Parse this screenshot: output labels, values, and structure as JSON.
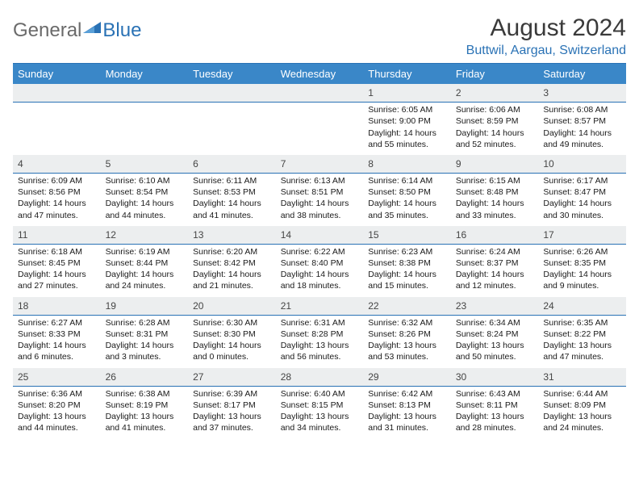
{
  "logo": {
    "text1": "General",
    "text2": "Blue",
    "color_gray": "#6a6a6a",
    "color_blue": "#2a72b5"
  },
  "title": "August 2024",
  "location": "Buttwil, Aargau, Switzerland",
  "colors": {
    "header_bg": "#3a87c8",
    "header_text": "#ffffff",
    "daynum_bg": "#eceeef",
    "daynum_border": "#2a72b5",
    "body_text": "#1a1a1a",
    "rule": "#2a72b5"
  },
  "weekdays": [
    "Sunday",
    "Monday",
    "Tuesday",
    "Wednesday",
    "Thursday",
    "Friday",
    "Saturday"
  ],
  "weeks": [
    [
      null,
      null,
      null,
      null,
      {
        "n": "1",
        "sr": "6:05 AM",
        "ss": "9:00 PM",
        "dl": "14 hours and 55 minutes."
      },
      {
        "n": "2",
        "sr": "6:06 AM",
        "ss": "8:59 PM",
        "dl": "14 hours and 52 minutes."
      },
      {
        "n": "3",
        "sr": "6:08 AM",
        "ss": "8:57 PM",
        "dl": "14 hours and 49 minutes."
      }
    ],
    [
      {
        "n": "4",
        "sr": "6:09 AM",
        "ss": "8:56 PM",
        "dl": "14 hours and 47 minutes."
      },
      {
        "n": "5",
        "sr": "6:10 AM",
        "ss": "8:54 PM",
        "dl": "14 hours and 44 minutes."
      },
      {
        "n": "6",
        "sr": "6:11 AM",
        "ss": "8:53 PM",
        "dl": "14 hours and 41 minutes."
      },
      {
        "n": "7",
        "sr": "6:13 AM",
        "ss": "8:51 PM",
        "dl": "14 hours and 38 minutes."
      },
      {
        "n": "8",
        "sr": "6:14 AM",
        "ss": "8:50 PM",
        "dl": "14 hours and 35 minutes."
      },
      {
        "n": "9",
        "sr": "6:15 AM",
        "ss": "8:48 PM",
        "dl": "14 hours and 33 minutes."
      },
      {
        "n": "10",
        "sr": "6:17 AM",
        "ss": "8:47 PM",
        "dl": "14 hours and 30 minutes."
      }
    ],
    [
      {
        "n": "11",
        "sr": "6:18 AM",
        "ss": "8:45 PM",
        "dl": "14 hours and 27 minutes."
      },
      {
        "n": "12",
        "sr": "6:19 AM",
        "ss": "8:44 PM",
        "dl": "14 hours and 24 minutes."
      },
      {
        "n": "13",
        "sr": "6:20 AM",
        "ss": "8:42 PM",
        "dl": "14 hours and 21 minutes."
      },
      {
        "n": "14",
        "sr": "6:22 AM",
        "ss": "8:40 PM",
        "dl": "14 hours and 18 minutes."
      },
      {
        "n": "15",
        "sr": "6:23 AM",
        "ss": "8:38 PM",
        "dl": "14 hours and 15 minutes."
      },
      {
        "n": "16",
        "sr": "6:24 AM",
        "ss": "8:37 PM",
        "dl": "14 hours and 12 minutes."
      },
      {
        "n": "17",
        "sr": "6:26 AM",
        "ss": "8:35 PM",
        "dl": "14 hours and 9 minutes."
      }
    ],
    [
      {
        "n": "18",
        "sr": "6:27 AM",
        "ss": "8:33 PM",
        "dl": "14 hours and 6 minutes."
      },
      {
        "n": "19",
        "sr": "6:28 AM",
        "ss": "8:31 PM",
        "dl": "14 hours and 3 minutes."
      },
      {
        "n": "20",
        "sr": "6:30 AM",
        "ss": "8:30 PM",
        "dl": "14 hours and 0 minutes."
      },
      {
        "n": "21",
        "sr": "6:31 AM",
        "ss": "8:28 PM",
        "dl": "13 hours and 56 minutes."
      },
      {
        "n": "22",
        "sr": "6:32 AM",
        "ss": "8:26 PM",
        "dl": "13 hours and 53 minutes."
      },
      {
        "n": "23",
        "sr": "6:34 AM",
        "ss": "8:24 PM",
        "dl": "13 hours and 50 minutes."
      },
      {
        "n": "24",
        "sr": "6:35 AM",
        "ss": "8:22 PM",
        "dl": "13 hours and 47 minutes."
      }
    ],
    [
      {
        "n": "25",
        "sr": "6:36 AM",
        "ss": "8:20 PM",
        "dl": "13 hours and 44 minutes."
      },
      {
        "n": "26",
        "sr": "6:38 AM",
        "ss": "8:19 PM",
        "dl": "13 hours and 41 minutes."
      },
      {
        "n": "27",
        "sr": "6:39 AM",
        "ss": "8:17 PM",
        "dl": "13 hours and 37 minutes."
      },
      {
        "n": "28",
        "sr": "6:40 AM",
        "ss": "8:15 PM",
        "dl": "13 hours and 34 minutes."
      },
      {
        "n": "29",
        "sr": "6:42 AM",
        "ss": "8:13 PM",
        "dl": "13 hours and 31 minutes."
      },
      {
        "n": "30",
        "sr": "6:43 AM",
        "ss": "8:11 PM",
        "dl": "13 hours and 28 minutes."
      },
      {
        "n": "31",
        "sr": "6:44 AM",
        "ss": "8:09 PM",
        "dl": "13 hours and 24 minutes."
      }
    ]
  ],
  "labels": {
    "sunrise": "Sunrise: ",
    "sunset": "Sunset: ",
    "daylight": "Daylight: "
  }
}
